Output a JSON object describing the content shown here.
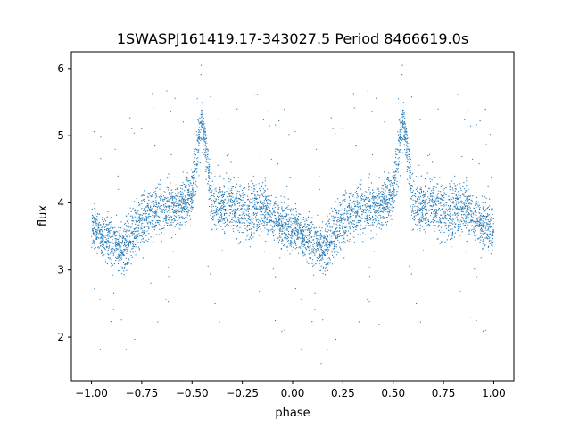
{
  "chart_data": {
    "type": "scatter",
    "title": "1SWASPJ161419.17-343027.5 Period 8466619.0s",
    "xlabel": "phase",
    "ylabel": "flux",
    "xlim": [
      -1.1,
      1.1
    ],
    "ylim": [
      1.35,
      6.25
    ],
    "xticks": [
      -1.0,
      -0.75,
      -0.5,
      -0.25,
      0.0,
      0.25,
      0.5,
      0.75,
      1.0
    ],
    "xtick_labels": [
      "−1.00",
      "−0.75",
      "−0.50",
      "−0.25",
      "0.00",
      "0.25",
      "0.50",
      "0.75",
      "1.00"
    ],
    "yticks": [
      2,
      3,
      4,
      5,
      6
    ],
    "ytick_labels": [
      "2",
      "3",
      "4",
      "5",
      "6"
    ],
    "grid": false,
    "marker_color": "#1f77b4",
    "series": [
      {
        "x": [
          0.0,
          0.05,
          0.1,
          0.15,
          0.2,
          0.25,
          0.3,
          0.35,
          0.4,
          0.45,
          0.5,
          0.55,
          0.6,
          0.65,
          0.7,
          0.75,
          0.8,
          0.85,
          0.9,
          0.95,
          1.0
        ],
        "values": [
          3.65,
          3.5,
          3.4,
          3.3,
          3.55,
          3.75,
          3.85,
          3.9,
          3.95,
          4.0,
          4.1,
          5.3,
          3.95,
          3.9,
          3.95,
          3.85,
          3.9,
          3.95,
          3.8,
          3.7,
          3.6
        ],
        "spread": [
          0.25,
          0.25,
          0.3,
          0.3,
          0.35,
          0.3,
          0.3,
          0.3,
          0.3,
          0.3,
          0.3,
          0.25,
          0.3,
          0.3,
          0.35,
          0.35,
          0.35,
          0.3,
          0.3,
          0.3,
          0.3
        ]
      }
    ]
  }
}
